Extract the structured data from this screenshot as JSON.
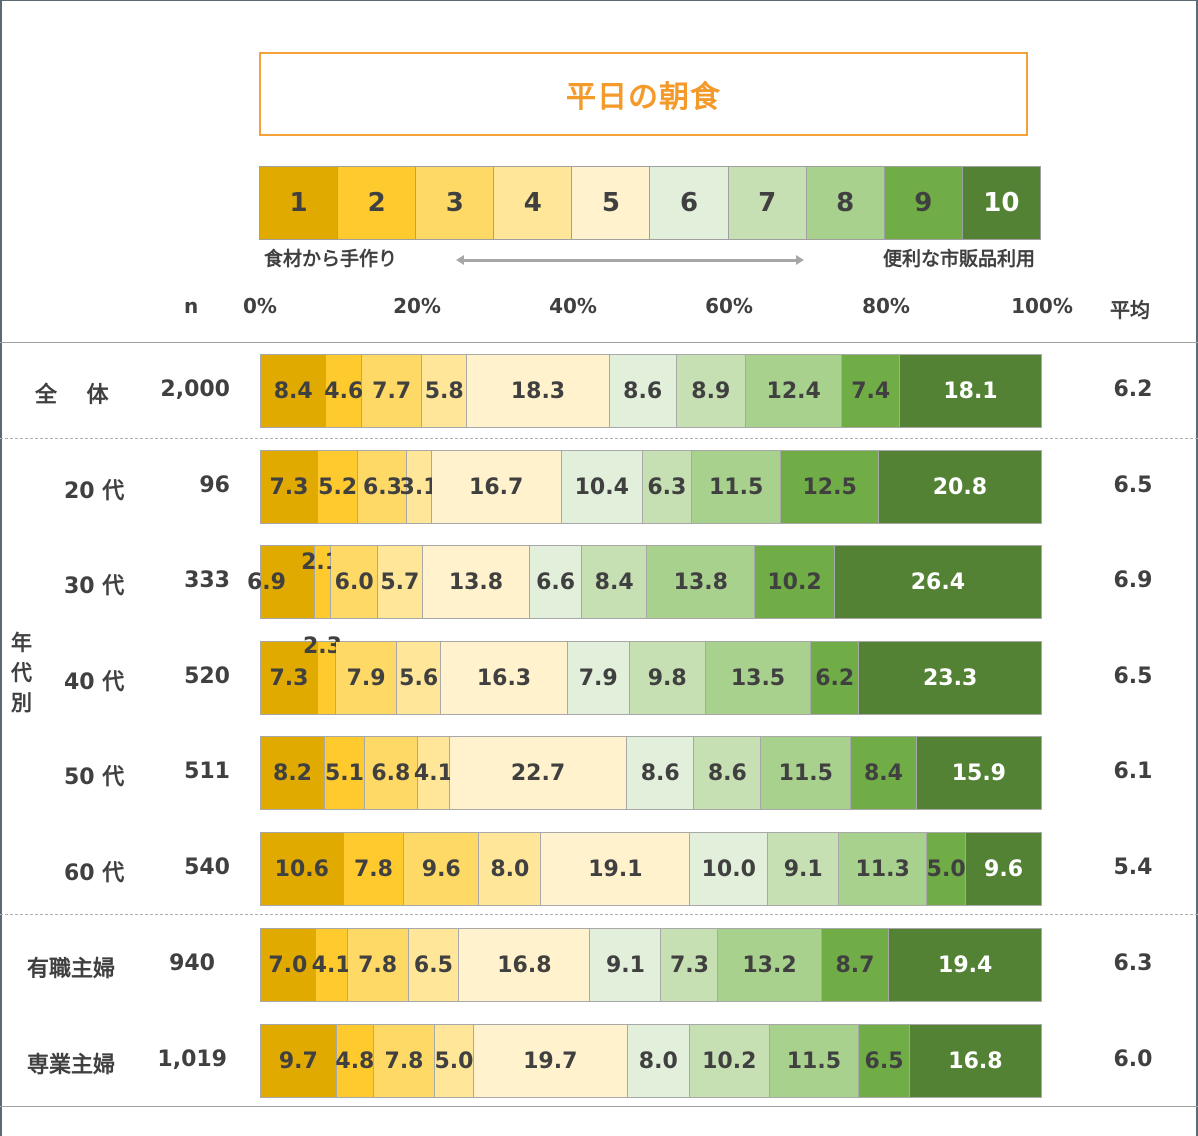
{
  "title": "平日の朝食",
  "scale": {
    "levels": [
      "1",
      "2",
      "3",
      "4",
      "5",
      "6",
      "7",
      "8",
      "9",
      "10"
    ],
    "colors": [
      "#e0aa00",
      "#ffca2e",
      "#ffd966",
      "#ffe699",
      "#fff2cc",
      "#e2efda",
      "#c6e0b4",
      "#a9d18e",
      "#70ad47",
      "#548235"
    ],
    "text_colors": [
      "#404040",
      "#404040",
      "#404040",
      "#404040",
      "#404040",
      "#404040",
      "#404040",
      "#404040",
      "#404040",
      "#ffffff"
    ],
    "left_label": "食材から手作り",
    "right_label": "便利な市販品利用"
  },
  "header": {
    "n_label": "n",
    "avg_label": "平均",
    "ticks": [
      "0%",
      "20%",
      "40%",
      "60%",
      "80%",
      "100%"
    ]
  },
  "group_label": "年代別",
  "chart_data": {
    "type": "bar",
    "orientation": "horizontal",
    "stacked": true,
    "percent": true,
    "title": "平日の朝食",
    "xlabel": "",
    "ylabel": "",
    "xlim": [
      0,
      100
    ],
    "xticks": [
      "0%",
      "20%",
      "40%",
      "60%",
      "80%",
      "100%"
    ],
    "legend": [
      "1",
      "2",
      "3",
      "4",
      "5",
      "6",
      "7",
      "8",
      "9",
      "10"
    ],
    "legend_annotation": {
      "left": "食材から手作り",
      "right": "便利な市販品利用"
    },
    "categories": [
      "全　体",
      "20 代",
      "30 代",
      "40 代",
      "50 代",
      "60 代",
      "有職主婦",
      "専業主婦"
    ],
    "n": [
      "2,000",
      "96",
      "333",
      "520",
      "511",
      "540",
      "940",
      "1,019"
    ],
    "average": [
      "6.2",
      "6.5",
      "6.9",
      "6.5",
      "6.1",
      "5.4",
      "6.3",
      "6.0"
    ],
    "rows": [
      [
        8.4,
        4.6,
        7.7,
        5.8,
        18.3,
        8.6,
        8.9,
        12.4,
        7.4,
        18.1
      ],
      [
        7.3,
        5.2,
        6.3,
        3.1,
        16.7,
        10.4,
        6.3,
        11.5,
        12.5,
        20.8
      ],
      [
        6.9,
        2.1,
        6.0,
        5.7,
        13.8,
        6.6,
        8.4,
        13.8,
        10.2,
        26.4
      ],
      [
        7.3,
        2.3,
        7.9,
        5.6,
        16.3,
        7.9,
        9.8,
        13.5,
        6.2,
        23.3
      ],
      [
        8.2,
        5.1,
        6.8,
        4.1,
        22.7,
        8.6,
        8.6,
        11.5,
        8.4,
        15.9
      ],
      [
        10.6,
        7.8,
        9.6,
        8.0,
        19.1,
        10.0,
        9.1,
        11.3,
        5.0,
        9.6
      ],
      [
        7.0,
        4.1,
        7.8,
        6.5,
        16.8,
        9.1,
        7.3,
        13.2,
        8.7,
        19.4
      ],
      [
        9.7,
        4.8,
        7.8,
        5.0,
        19.7,
        8.0,
        10.2,
        11.5,
        6.5,
        16.8
      ]
    ],
    "labels": [
      [
        "8.4",
        "4.6",
        "7.7",
        "5.8",
        "18.3",
        "8.6",
        "8.9",
        "12.4",
        "7.4",
        "18.1"
      ],
      [
        "7.3",
        "5.2",
        "6.3",
        "3.1",
        "16.7",
        "10.4",
        "6.3",
        "11.5",
        "12.5",
        "20.8"
      ],
      [
        "6.9",
        "2.1",
        "6.0",
        "5.7",
        "13.8",
        "6.6",
        "8.4",
        "13.8",
        "10.2",
        "26.4"
      ],
      [
        "7.3",
        "2.3",
        "7.9",
        "5.6",
        "16.3",
        "7.9",
        "9.8",
        "13.5",
        "6.2",
        "23.3"
      ],
      [
        "8.2",
        "5.1",
        "6.8",
        "4.1",
        "22.7",
        "8.6",
        "8.6",
        "11.5",
        "8.4",
        "15.9"
      ],
      [
        "10.6",
        "7.8",
        "9.6",
        "8.0",
        "19.1",
        "10.0",
        "9.1",
        "11.3",
        "5.0",
        "9.6"
      ],
      [
        "7.0",
        "4.1",
        "7.8",
        "6.5",
        "16.8",
        "9.1",
        "7.3",
        "13.2",
        "8.7",
        "19.4"
      ],
      [
        "9.7",
        "4.8",
        "7.8",
        "5.0",
        "19.7",
        "8.0",
        "10.2",
        "11.5",
        "6.5",
        "16.8"
      ]
    ]
  }
}
